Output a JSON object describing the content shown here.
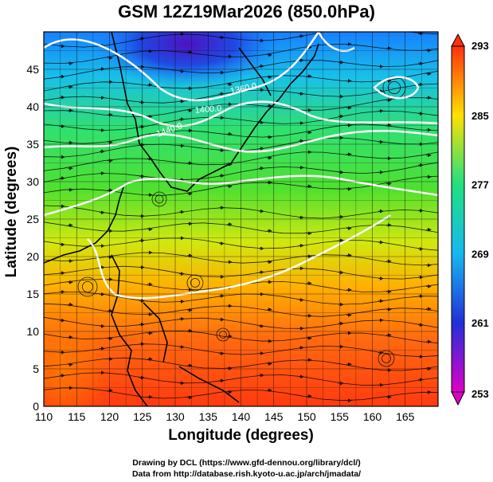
{
  "title": "GSM 12Z19Mar2026 (850.0hPa)",
  "chart_data": {
    "type": "heatmap",
    "xlabel": "Longitude (degrees)",
    "ylabel": "Latitude  (degrees)",
    "xlim": [
      110,
      170
    ],
    "ylim": [
      0,
      50
    ],
    "xticks": [
      110,
      115,
      120,
      125,
      130,
      135,
      140,
      145,
      150,
      155,
      160,
      165
    ],
    "yticks": [
      0,
      5,
      10,
      15,
      20,
      25,
      30,
      35,
      40,
      45
    ],
    "grid": true,
    "colorbar": {
      "range": [
        253,
        293
      ],
      "ticks": [
        253,
        261,
        269,
        277,
        285,
        293
      ],
      "colors": [
        "#e000c8",
        "#2030d8",
        "#18b8f0",
        "#20e080",
        "#ffe000",
        "#ff3010"
      ]
    },
    "contour_labels": [
      "1360.0",
      "1400.0",
      "1440.0"
    ]
  },
  "credits": {
    "line1": "Drawing by DCL (https://www.gfd-dennou.org/library/dcl/)",
    "line2": "Data from http://database.rish.kyoto-u.ac.jp/arch/jmadata/"
  }
}
